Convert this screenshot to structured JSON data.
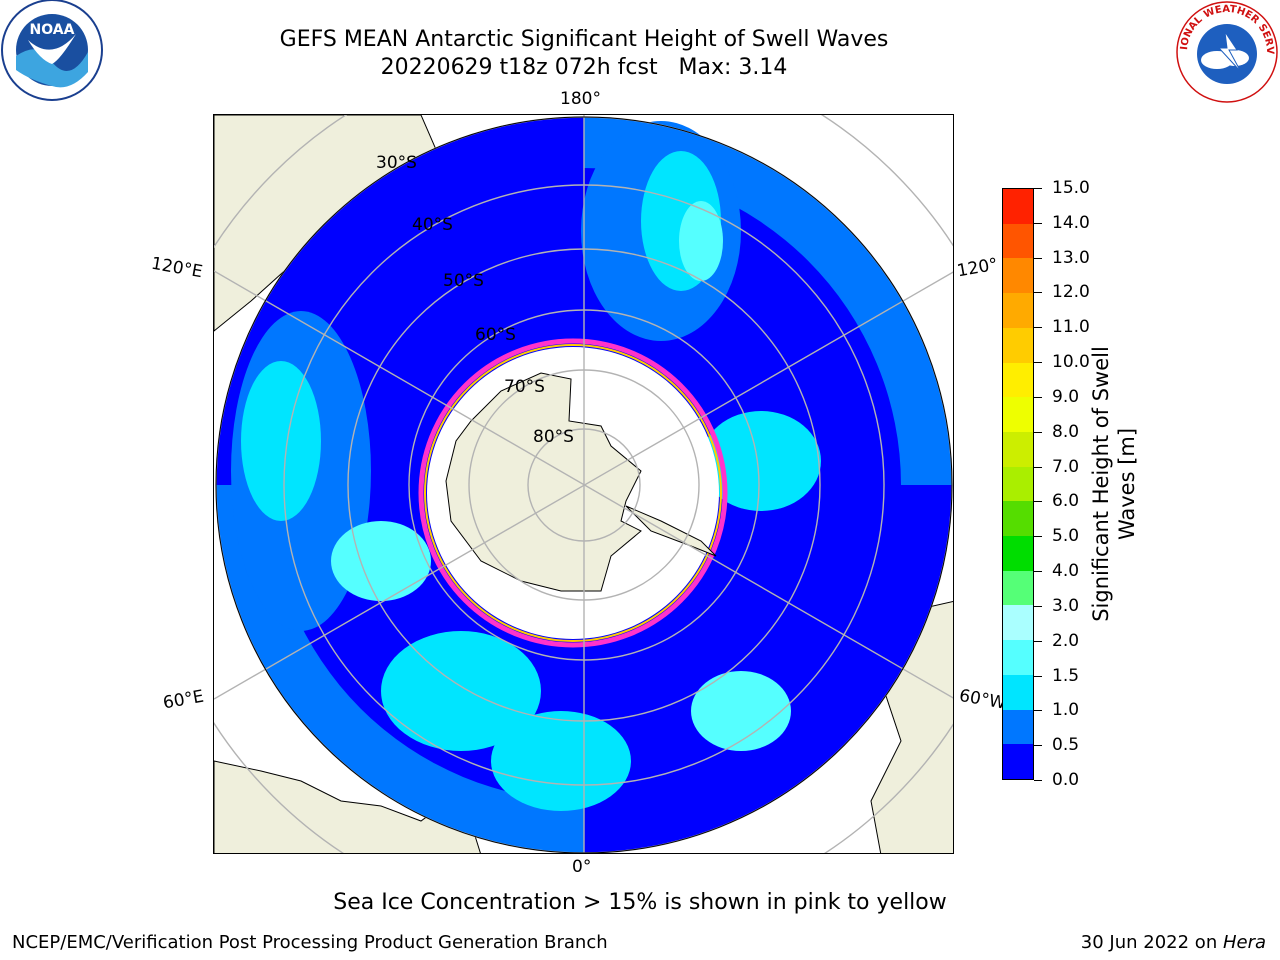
{
  "header": {
    "title": "GEFS MEAN Antarctic Significant Height of Swell Waves",
    "subtitle": "20220629 t18z 072h fcst   Max: 3.14"
  },
  "map": {
    "projection": "south-polar-stereographic",
    "longitude_labels": {
      "top": "180°",
      "left_upper": "120°E",
      "right_upper": "120°",
      "left_lower": "60°E",
      "right_lower": "60°W",
      "bottom": "0°"
    },
    "latitude_labels": [
      "30°S",
      "40°S",
      "50°S",
      "60°S",
      "70°S",
      "80°S"
    ],
    "colors": {
      "land": "#efefdc",
      "sea_ice": "#ffffff",
      "ice_edge": "#ff33cc",
      "ice_edge_inner": "#ffcc00",
      "gridlines": "#b3b3b3"
    }
  },
  "colorbar": {
    "title_line1": "Significant Height of Swell",
    "title_line2": "Waves [m]",
    "tick_labels": [
      "0.0",
      "0.5",
      "1.0",
      "1.5",
      "2.0",
      "3.0",
      "4.0",
      "5.0",
      "6.0",
      "7.0",
      "8.0",
      "9.0",
      "10.0",
      "11.0",
      "12.0",
      "13.0",
      "14.0",
      "15.0"
    ],
    "segment_colors": [
      "#0000ff",
      "#0077ff",
      "#00e5ff",
      "#55ffff",
      "#aaffff",
      "#55ff77",
      "#00dd00",
      "#55dd00",
      "#aaee00",
      "#ccee00",
      "#eeff00",
      "#ffee00",
      "#ffcc00",
      "#ffaa00",
      "#ff8800",
      "#ff5500",
      "#ff2200",
      "#ff0000"
    ]
  },
  "note": "Sea Ice Concentration > 15% is shown in pink to yellow",
  "footer": {
    "left": "NCEP/EMC/Verification Post Processing Product Generation Branch",
    "right_date": "30 Jun 2022 on ",
    "right_host": "Hera"
  },
  "logos": {
    "noaa_text": "NOAA",
    "nws_text": "NATIONAL WEATHER SERVICE"
  }
}
